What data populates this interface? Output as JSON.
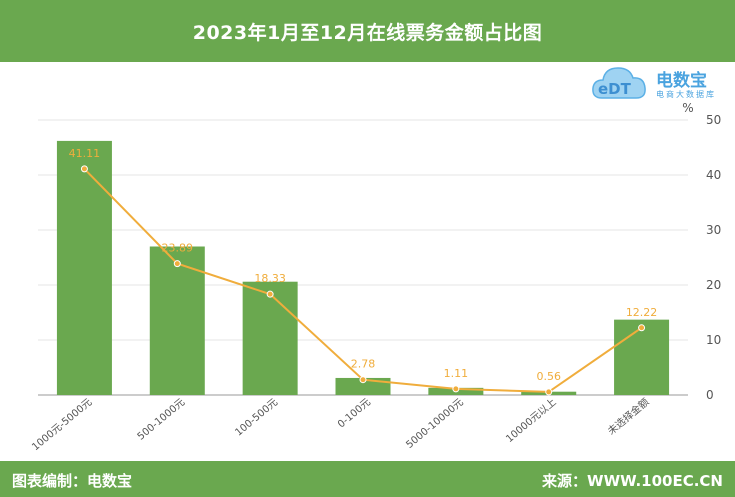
{
  "header": {
    "title": "2023年1月至12月在线票务金额占比图"
  },
  "logo": {
    "brand": "电数宝",
    "sub": "电商大数据库"
  },
  "footer": {
    "left": "图表编制：电数宝",
    "right": "来源：WWW.100EC.CN"
  },
  "colors": {
    "header_bg": "#6aa84f",
    "bar": "#6aa84f",
    "line": "#f0ad3c"
  },
  "chart_data": {
    "type": "bar",
    "categories": [
      "1000元-5000元",
      "500-1000元",
      "100-500元",
      "0-100元",
      "5000-10000元",
      "10000元以上",
      "未选择金额"
    ],
    "series": [
      {
        "values": [
          46.2,
          27.0,
          20.6,
          3.1,
          1.3,
          0.6,
          13.7
        ]
      },
      {
        "values": [
          41.11,
          23.89,
          18.33,
          2.78,
          1.11,
          0.56,
          12.22
        ]
      }
    ],
    "data_labels": [
      "41.11",
      "23.89",
      "18.33",
      "2.78",
      "1.11",
      "0.56",
      "12.22"
    ],
    "ylabel": "%",
    "ylim": [
      0,
      50
    ],
    "yticks": [
      0,
      10,
      20,
      30,
      40,
      50
    ],
    "grid": true
  }
}
